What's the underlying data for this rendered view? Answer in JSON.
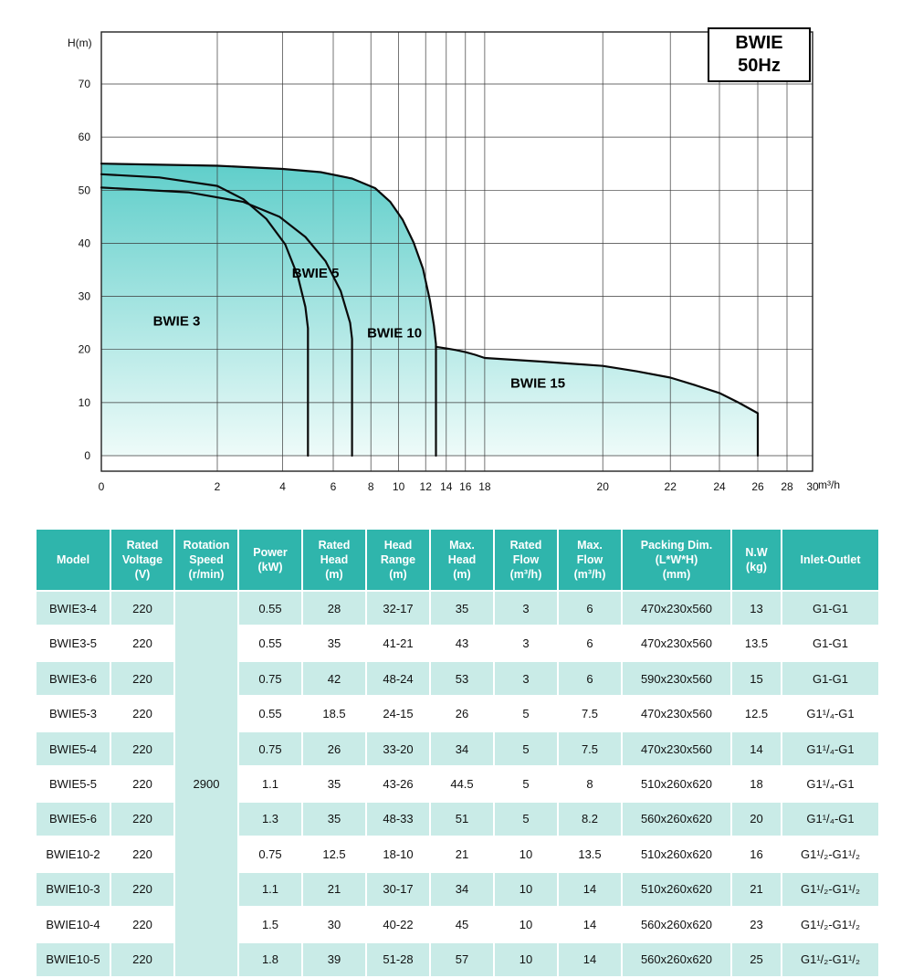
{
  "chart": {
    "title_line1": "BWIE",
    "title_line2": "50Hz",
    "y_axis_label": "H(m)",
    "x_axis_unit": "m³/h"
  },
  "chart_data": {
    "type": "line",
    "title": "BWIE 50Hz",
    "ylabel": "H(m)",
    "xlabel": "m³/h",
    "ylim": [
      0,
      80
    ],
    "y_ticks": [
      0,
      10,
      20,
      30,
      40,
      50,
      60,
      70
    ],
    "x_ticks": [
      0,
      2,
      4,
      6,
      8,
      10,
      12,
      14,
      16,
      18,
      20,
      22,
      24,
      26,
      28,
      30
    ],
    "x_tick_pos": [
      0,
      0.163,
      0.255,
      0.326,
      0.379,
      0.418,
      0.456,
      0.485,
      0.512,
      0.539,
      0.705,
      0.8,
      0.869,
      0.923,
      0.964,
      1.0
    ],
    "grid": true,
    "legend_position": "labels-on-chart",
    "colors": {
      "fill_top": "#5FCECA",
      "fill_bottom": "#EEFBF9",
      "curve": "#0a0a0a",
      "grid": "#3a3a3a"
    },
    "envelope": [
      [
        0,
        55
      ],
      [
        2,
        54.6
      ],
      [
        4,
        54
      ],
      [
        5.5,
        53.4
      ],
      [
        7,
        52.2
      ],
      [
        8.3,
        50.4
      ],
      [
        9.4,
        47.8
      ],
      [
        10.3,
        44.4
      ],
      [
        11.1,
        40.2
      ],
      [
        11.8,
        35.2
      ],
      [
        12.4,
        29.4
      ],
      [
        12.8,
        24.5
      ],
      [
        13,
        21
      ],
      [
        13,
        20.5
      ],
      [
        14,
        20.2
      ],
      [
        15,
        19.9
      ],
      [
        16,
        19.5
      ],
      [
        17,
        19
      ],
      [
        18,
        18.4
      ],
      [
        19,
        17.7
      ],
      [
        20,
        16.9
      ],
      [
        21,
        15.9
      ],
      [
        22,
        14.7
      ],
      [
        23,
        13.3
      ],
      [
        24,
        11.8
      ],
      [
        25,
        10
      ],
      [
        26,
        8
      ],
      [
        26,
        0
      ]
    ],
    "series": [
      {
        "name": "BWIE 3",
        "label_at": [
          1.3,
          24.5
        ],
        "points": [
          [
            0,
            53
          ],
          [
            1,
            52.4
          ],
          [
            2,
            50.8
          ],
          [
            2.8,
            48.3
          ],
          [
            3.5,
            44.6
          ],
          [
            4.1,
            39.8
          ],
          [
            4.6,
            33.8
          ],
          [
            4.9,
            28
          ],
          [
            5,
            24
          ],
          [
            5,
            0
          ]
        ]
      },
      {
        "name": "BWIE 5",
        "label_at": [
          5.3,
          33.5
        ],
        "points": [
          [
            0,
            50.5
          ],
          [
            1.5,
            49.6
          ],
          [
            2.8,
            47.8
          ],
          [
            3.9,
            45
          ],
          [
            4.9,
            41.2
          ],
          [
            5.7,
            36.6
          ],
          [
            6.4,
            31
          ],
          [
            6.9,
            25
          ],
          [
            7,
            22
          ],
          [
            7,
            0
          ]
        ]
      },
      {
        "name": "BWIE 10",
        "label_at": [
          9.7,
          22.3
        ],
        "points": [
          [
            0,
            55
          ],
          [
            2,
            54.6
          ],
          [
            4,
            54
          ],
          [
            5.5,
            53.4
          ],
          [
            7,
            52.2
          ],
          [
            8.3,
            50.4
          ],
          [
            9.4,
            47.8
          ],
          [
            10.3,
            44.4
          ],
          [
            11.1,
            40.2
          ],
          [
            11.8,
            35.2
          ],
          [
            12.4,
            29.4
          ],
          [
            12.8,
            24.5
          ],
          [
            13,
            21
          ],
          [
            13,
            0
          ]
        ]
      },
      {
        "name": "BWIE 15",
        "label_at": [
          18.9,
          12.8
        ],
        "points": [
          [
            13,
            20.5
          ],
          [
            14,
            20.2
          ],
          [
            15,
            19.9
          ],
          [
            16,
            19.5
          ],
          [
            17,
            19
          ],
          [
            18,
            18.4
          ],
          [
            19,
            17.7
          ],
          [
            20,
            16.9
          ],
          [
            21,
            15.9
          ],
          [
            22,
            14.7
          ],
          [
            23,
            13.3
          ],
          [
            24,
            11.8
          ],
          [
            25,
            10
          ],
          [
            26,
            8
          ],
          [
            26,
            0
          ]
        ]
      }
    ]
  },
  "table": {
    "rotation_speed": "2900",
    "columns": [
      "Model",
      "Rated\nVoltage\n(V)",
      "Rotation\nSpeed\n(r/min)",
      "Power\n(kW)",
      "Rated\nHead\n(m)",
      "Head\nRange\n(m)",
      "Max.\nHead\n(m)",
      "Rated\nFlow\n(m³/h)",
      "Max.\nFlow\n(m³/h)",
      "Packing Dim.\n(L*W*H)\n(mm)",
      "N.W\n(kg)",
      "Inlet-Outlet"
    ],
    "rows": [
      [
        "BWIE3-4",
        "220",
        "0.55",
        "28",
        "32-17",
        "35",
        "3",
        "6",
        "470x230x560",
        "13",
        "G1-G1"
      ],
      [
        "BWIE3-5",
        "220",
        "0.55",
        "35",
        "41-21",
        "43",
        "3",
        "6",
        "470x230x560",
        "13.5",
        "G1-G1"
      ],
      [
        "BWIE3-6",
        "220",
        "0.75",
        "42",
        "48-24",
        "53",
        "3",
        "6",
        "590x230x560",
        "15",
        "G1-G1"
      ],
      [
        "BWIE5-3",
        "220",
        "0.55",
        "18.5",
        "24-15",
        "26",
        "5",
        "7.5",
        "470x230x560",
        "12.5",
        "G1¹/₄-G1"
      ],
      [
        "BWIE5-4",
        "220",
        "0.75",
        "26",
        "33-20",
        "34",
        "5",
        "7.5",
        "470x230x560",
        "14",
        "G1¹/₄-G1"
      ],
      [
        "BWIE5-5",
        "220",
        "1.1",
        "35",
        "43-26",
        "44.5",
        "5",
        "8",
        "510x260x620",
        "18",
        "G1¹/₄-G1"
      ],
      [
        "BWIE5-6",
        "220",
        "1.3",
        "35",
        "48-33",
        "51",
        "5",
        "8.2",
        "560x260x620",
        "20",
        "G1¹/₄-G1"
      ],
      [
        "BWIE10-2",
        "220",
        "0.75",
        "12.5",
        "18-10",
        "21",
        "10",
        "13.5",
        "510x260x620",
        "16",
        "G1¹/₂-G1¹/₂"
      ],
      [
        "BWIE10-3",
        "220",
        "1.1",
        "21",
        "30-17",
        "34",
        "10",
        "14",
        "510x260x620",
        "21",
        "G1¹/₂-G1¹/₂"
      ],
      [
        "BWIE10-4",
        "220",
        "1.5",
        "30",
        "40-22",
        "45",
        "10",
        "14",
        "560x260x620",
        "23",
        "G1¹/₂-G1¹/₂"
      ],
      [
        "BWIE10-5",
        "220",
        "1.8",
        "39",
        "51-28",
        "57",
        "10",
        "14",
        "560x260x620",
        "25",
        "G1¹/₂-G1¹/₂"
      ]
    ]
  }
}
